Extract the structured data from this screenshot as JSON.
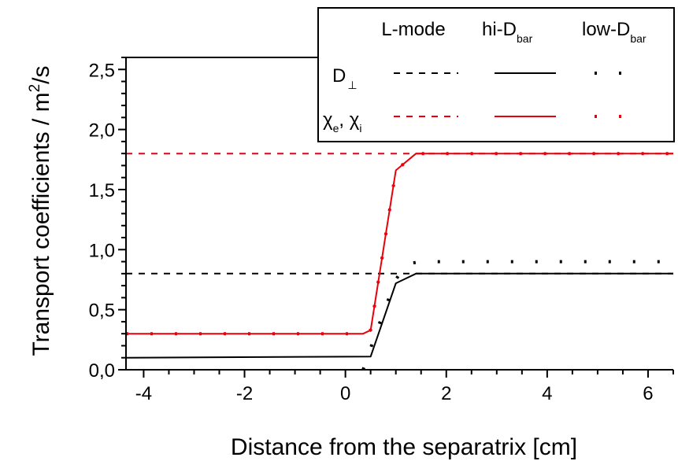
{
  "chart_data": {
    "type": "line",
    "xlabel": "Distance from the separatrix [cm]",
    "ylabel": "Transport coefficients / m",
    "ylabel_sup": "2",
    "ylabel_tail": "/s",
    "xlim": [
      -4.35,
      6.5
    ],
    "ylim": [
      0.0,
      2.6
    ],
    "x_ticks": [
      -4,
      -2,
      0,
      2,
      4,
      6
    ],
    "x_tick_labels": [
      "-4",
      "-2",
      "0",
      "2",
      "4",
      "6"
    ],
    "y_ticks": [
      0.0,
      0.5,
      1.0,
      1.5,
      2.0,
      2.5
    ],
    "y_tick_labels": [
      "0,0",
      "0,5",
      "1,0",
      "1,5",
      "2,0",
      "2,5"
    ],
    "legend": {
      "placement": "top-right",
      "columns": [
        {
          "main": "L-mode",
          "sub": ""
        },
        {
          "main": "hi-D",
          "sub": "bar"
        },
        {
          "main": "low-D",
          "sub": "bar"
        }
      ],
      "rows": [
        {
          "main": "D",
          "sub": "⊥"
        },
        {
          "main": "χ",
          "sub1": "e",
          "sep": ", χ",
          "sub2": "i"
        }
      ]
    },
    "colors": {
      "D": "#000000",
      "chi": "#e8000b"
    },
    "series": [
      {
        "quantity": "D",
        "case": "L-mode",
        "style": "dashed",
        "x": [
          -4.35,
          6.5
        ],
        "y": [
          0.8,
          0.8
        ]
      },
      {
        "quantity": "D",
        "case": "hi-D",
        "style": "solid",
        "x": [
          -4.35,
          0.5,
          1.0,
          1.4,
          6.5
        ],
        "y": [
          0.1,
          0.11,
          0.72,
          0.8,
          0.8
        ]
      },
      {
        "quantity": "D",
        "case": "low-D",
        "style": "dotted",
        "x": [
          0.35,
          0.6,
          1.0,
          1.2,
          1.5,
          6.5
        ],
        "y": [
          0.0,
          0.3,
          0.75,
          0.88,
          0.9,
          0.9
        ]
      },
      {
        "quantity": "chi",
        "case": "L-mode",
        "style": "dashed",
        "x": [
          -4.35,
          6.5
        ],
        "y": [
          1.8,
          1.8
        ]
      },
      {
        "quantity": "chi",
        "case": "hi-D",
        "style": "solid",
        "x": [
          -4.35,
          0.35,
          0.5,
          1.0,
          1.4,
          6.5
        ],
        "y": [
          0.3,
          0.3,
          0.33,
          1.66,
          1.8,
          1.8
        ]
      },
      {
        "quantity": "chi",
        "case": "low-D",
        "style": "dotted",
        "x": [
          -4.35,
          0.35,
          0.5,
          1.0,
          1.4,
          6.5
        ],
        "y": [
          0.3,
          0.3,
          0.33,
          1.66,
          1.8,
          1.8
        ]
      }
    ]
  }
}
